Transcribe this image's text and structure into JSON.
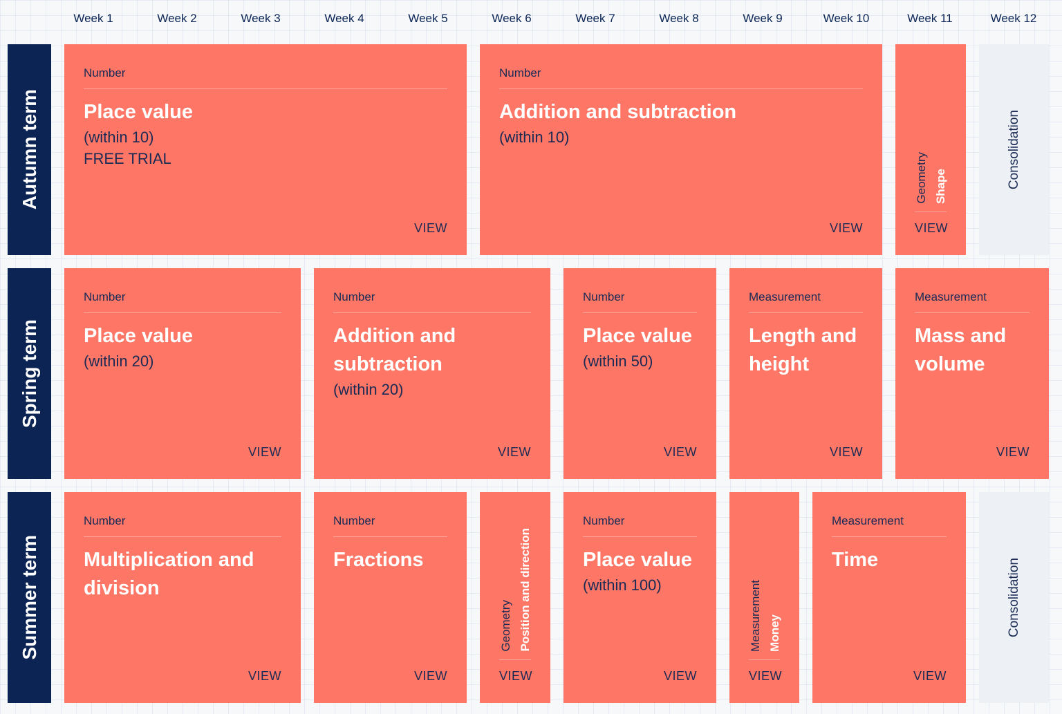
{
  "weeks": [
    "Week 1",
    "Week 2",
    "Week 3",
    "Week 4",
    "Week 5",
    "Week 6",
    "Week 7",
    "Week 8",
    "Week 9",
    "Week 10",
    "Week 11",
    "Week 12"
  ],
  "terms": {
    "autumn": "Autumn term",
    "spring": "Spring term",
    "summer": "Summer term"
  },
  "view_label": "VIEW",
  "consolidation_label": "Consolidation",
  "autumn": {
    "place_value": {
      "category": "Number",
      "title": "Place value",
      "sub": "(within 10)",
      "note": "FREE TRIAL"
    },
    "addition": {
      "category": "Number",
      "title": "Addition and subtraction",
      "sub": "(within 10)"
    },
    "shape": {
      "category": "Geometry",
      "title": "Shape"
    }
  },
  "spring": {
    "place_value": {
      "category": "Number",
      "title": "Place value",
      "sub": "(within 20)"
    },
    "addition": {
      "category": "Number",
      "title": "Addition and subtraction",
      "sub": "(within 20)"
    },
    "place_value_50": {
      "category": "Number",
      "title": "Place value",
      "sub": "(within 50)"
    },
    "length": {
      "category": "Measurement",
      "title": "Length and height"
    },
    "mass": {
      "category": "Measurement",
      "title": "Mass and volume"
    }
  },
  "summer": {
    "multiplication": {
      "category": "Number",
      "title": "Multiplication and division"
    },
    "fractions": {
      "category": "Number",
      "title": "Fractions"
    },
    "position": {
      "category": "Geometry",
      "title": "Position and direction"
    },
    "place_value_100": {
      "category": "Number",
      "title": "Place value",
      "sub": "(within 100)"
    },
    "money": {
      "category": "Measurement",
      "title": "Money"
    },
    "time": {
      "category": "Measurement",
      "title": "Time"
    }
  },
  "colors": {
    "card": "#fe7766",
    "term": "#0b2454",
    "consolidation": "#edf0f4",
    "text_dark": "#1a2a55"
  }
}
